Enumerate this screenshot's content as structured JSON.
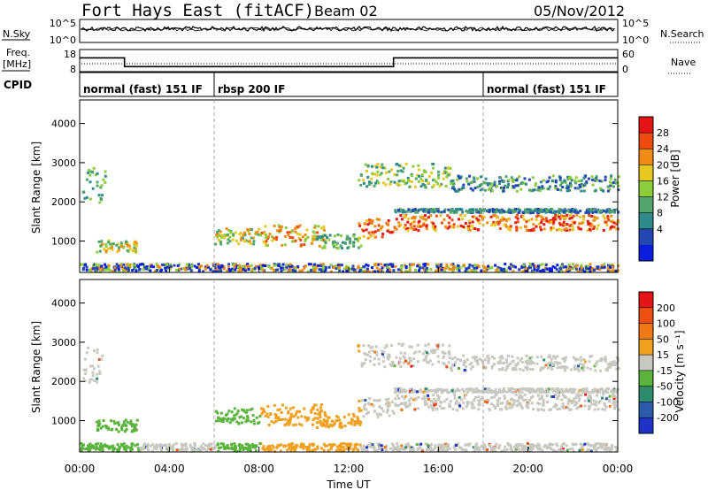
{
  "header": {
    "station": "Fort Hays East (fitACF)",
    "beam": "Beam 02",
    "date": "05/Nov/2012"
  },
  "noise_panel": {
    "left_label": "N.Sky",
    "right_label": "N.Search",
    "left_ticks": [
      "10^5",
      "10^0"
    ],
    "right_ticks": [
      "10^5",
      "10^0"
    ]
  },
  "freq_panel": {
    "label_line1": "Freq.",
    "label_line2": "[MHz]",
    "left_ticks": [
      "18",
      "8"
    ],
    "right_label": "Nave",
    "right_ticks": [
      "60",
      "0"
    ],
    "freq_steps": [
      {
        "t": 0.0,
        "f": 16.2
      },
      {
        "t": 2.0,
        "f": 11.0
      },
      {
        "t": 6.0,
        "f": 11.0
      },
      {
        "t": 14.0,
        "f": 16.2
      },
      {
        "t": 24.0,
        "f": 16.2
      }
    ]
  },
  "cpid": {
    "label": "CPID",
    "segments": [
      {
        "start": 0,
        "label": "normal (fast) 151 IF"
      },
      {
        "start": 6,
        "label": "rbsp 200 IF"
      },
      {
        "start": 18,
        "label": "normal (fast) 151 IF"
      }
    ]
  },
  "chart_data": [
    {
      "type": "heatmap",
      "name": "power",
      "ylabel": "Slant Range [km]",
      "xlabel": "Time UT",
      "x_ticks": [
        "00:00",
        "04:00",
        "08:00",
        "12:00",
        "16:00",
        "20:00",
        "00:00"
      ],
      "xlim_hours": [
        0,
        24
      ],
      "y_ticks": [
        1000,
        2000,
        3000,
        4000
      ],
      "ylim": [
        200,
        4600
      ],
      "colorbar_label": "Power [dB]",
      "colorbar_ticks": [
        "4",
        "8",
        "12",
        "16",
        "20",
        "24",
        "28"
      ],
      "colorbar_colors": [
        "#0a1ee0",
        "#2348b4",
        "#2f8a8a",
        "#52a56b",
        "#8ccd3c",
        "#e6c81e",
        "#f08c14",
        "#f04b0f",
        "#e61414"
      ]
    },
    {
      "type": "heatmap",
      "name": "velocity",
      "ylabel": "Slant Range [km]",
      "xlabel": "Time UT",
      "x_ticks": [
        "00:00",
        "04:00",
        "08:00",
        "12:00",
        "16:00",
        "20:00",
        "00:00"
      ],
      "xlim_hours": [
        0,
        24
      ],
      "y_ticks": [
        1000,
        2000,
        3000,
        4000
      ],
      "ylim": [
        200,
        4600
      ],
      "colorbar_label": "Velocity [m s⁻¹]",
      "colorbar_ticks": [
        "200",
        "100",
        "50",
        "15",
        "-15",
        "-50",
        "-100",
        "-200"
      ],
      "colorbar_colors": [
        "#1e32c8",
        "#2d5aaa",
        "#2e8c6e",
        "#5ab43c",
        "#c8c8c0",
        "#f0a01e",
        "#f07814",
        "#f0500f",
        "#e61414"
      ]
    }
  ],
  "time_axis_label": "Time UT"
}
